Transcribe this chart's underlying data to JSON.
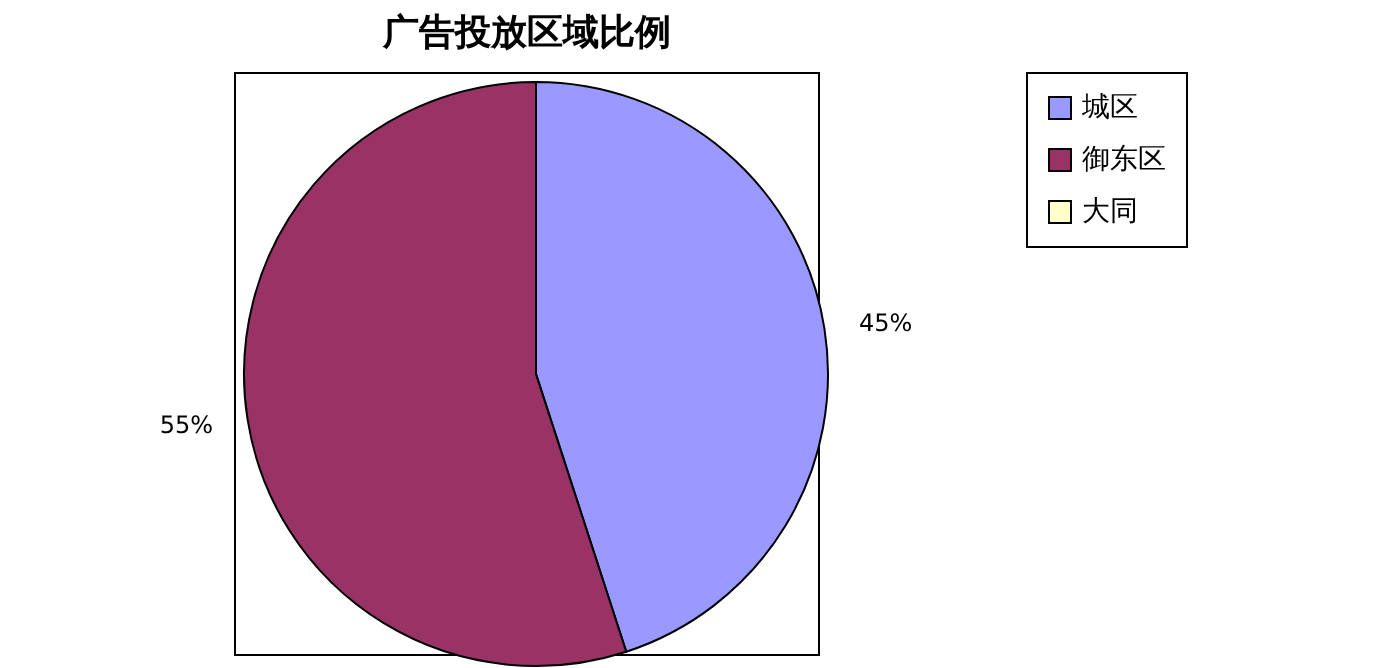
{
  "chart_data": {
    "type": "pie",
    "title": "广告投放区域比例",
    "categories": [
      "城区",
      "御东区",
      "大同"
    ],
    "values": [
      45,
      55,
      0
    ],
    "colors": [
      "#9999ff",
      "#993366",
      "#ffffcc"
    ],
    "value_labels": [
      "45%",
      "55%",
      null
    ],
    "legend": "top right"
  }
}
